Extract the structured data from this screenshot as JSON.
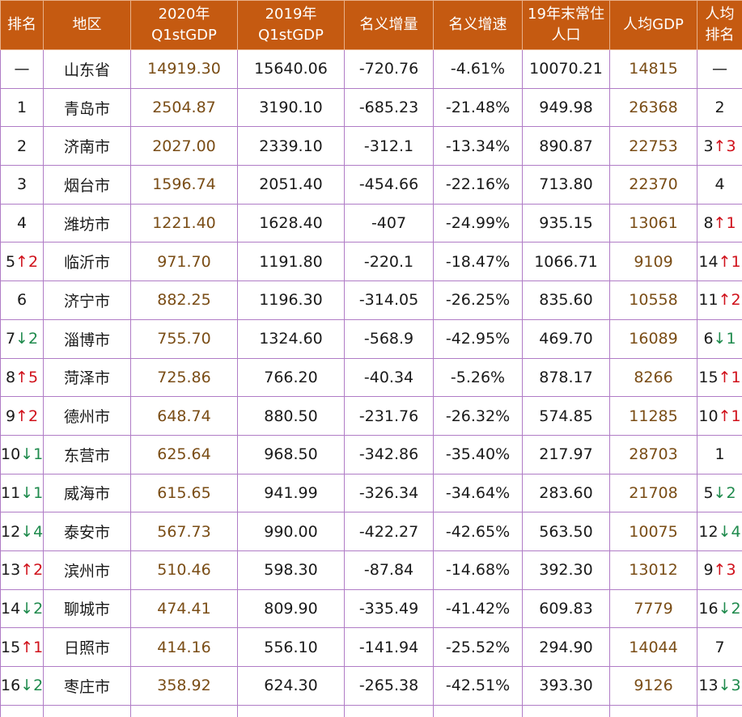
{
  "headers": [
    [
      "排名"
    ],
    [
      "地区"
    ],
    [
      "2020年",
      "Q1stGDP"
    ],
    [
      "2019年",
      "Q1stGDP"
    ],
    [
      "名义增量"
    ],
    [
      "名义增速"
    ],
    [
      "19年末常住",
      "人口"
    ],
    [
      "人均GDP"
    ],
    [
      "人均",
      "排名"
    ]
  ],
  "rows": [
    {
      "rank": "—",
      "rank_arrow": "",
      "rank_change": "",
      "region": "山东省",
      "gdp2020": "14919.30",
      "gdp2019": "15640.06",
      "increase": "-720.76",
      "growth": "-4.61%",
      "population": "10070.21",
      "per_capita": "14815",
      "pc_rank": "—",
      "pc_arrow": "",
      "pc_change": ""
    },
    {
      "rank": "1",
      "rank_arrow": "",
      "rank_change": "",
      "region": "青岛市",
      "gdp2020": "2504.87",
      "gdp2019": "3190.10",
      "increase": "-685.23",
      "growth": "-21.48%",
      "population": "949.98",
      "per_capita": "26368",
      "pc_rank": "2",
      "pc_arrow": "",
      "pc_change": ""
    },
    {
      "rank": "2",
      "rank_arrow": "",
      "rank_change": "",
      "region": "济南市",
      "gdp2020": "2027.00",
      "gdp2019": "2339.10",
      "increase": "-312.1",
      "growth": "-13.34%",
      "population": "890.87",
      "per_capita": "22753",
      "pc_rank": "3",
      "pc_arrow": "↑",
      "pc_change": "3"
    },
    {
      "rank": "3",
      "rank_arrow": "",
      "rank_change": "",
      "region": "烟台市",
      "gdp2020": "1596.74",
      "gdp2019": "2051.40",
      "increase": "-454.66",
      "growth": "-22.16%",
      "population": "713.80",
      "per_capita": "22370",
      "pc_rank": "4",
      "pc_arrow": "",
      "pc_change": ""
    },
    {
      "rank": "4",
      "rank_arrow": "",
      "rank_change": "",
      "region": "潍坊市",
      "gdp2020": "1221.40",
      "gdp2019": "1628.40",
      "increase": "-407",
      "growth": "-24.99%",
      "population": "935.15",
      "per_capita": "13061",
      "pc_rank": "8",
      "pc_arrow": "↑",
      "pc_change": "1"
    },
    {
      "rank": "5",
      "rank_arrow": "↑",
      "rank_change": "2",
      "region": "临沂市",
      "gdp2020": "971.70",
      "gdp2019": "1191.80",
      "increase": "-220.1",
      "growth": "-18.47%",
      "population": "1066.71",
      "per_capita": "9109",
      "pc_rank": "14",
      "pc_arrow": "↑",
      "pc_change": "1"
    },
    {
      "rank": "6",
      "rank_arrow": "",
      "rank_change": "",
      "region": "济宁市",
      "gdp2020": "882.25",
      "gdp2019": "1196.30",
      "increase": "-314.05",
      "growth": "-26.25%",
      "population": "835.60",
      "per_capita": "10558",
      "pc_rank": "11",
      "pc_arrow": "↑",
      "pc_change": "2"
    },
    {
      "rank": "7",
      "rank_arrow": "↓",
      "rank_change": "2",
      "region": "淄博市",
      "gdp2020": "755.70",
      "gdp2019": "1324.60",
      "increase": "-568.9",
      "growth": "-42.95%",
      "population": "469.70",
      "per_capita": "16089",
      "pc_rank": "6",
      "pc_arrow": "↓",
      "pc_change": "1"
    },
    {
      "rank": "8",
      "rank_arrow": "↑",
      "rank_change": "5",
      "region": "菏泽市",
      "gdp2020": "725.86",
      "gdp2019": "766.20",
      "increase": "-40.34",
      "growth": "-5.26%",
      "population": "878.17",
      "per_capita": "8266",
      "pc_rank": "15",
      "pc_arrow": "↑",
      "pc_change": "1"
    },
    {
      "rank": "9",
      "rank_arrow": "↑",
      "rank_change": "2",
      "region": "德州市",
      "gdp2020": "648.74",
      "gdp2019": "880.50",
      "increase": "-231.76",
      "growth": "-26.32%",
      "population": "574.85",
      "per_capita": "11285",
      "pc_rank": "10",
      "pc_arrow": "↑",
      "pc_change": "1"
    },
    {
      "rank": "10",
      "rank_arrow": "↓",
      "rank_change": "1",
      "region": "东营市",
      "gdp2020": "625.64",
      "gdp2019": "968.50",
      "increase": "-342.86",
      "growth": "-35.40%",
      "population": "217.97",
      "per_capita": "28703",
      "pc_rank": "1",
      "pc_arrow": "",
      "pc_change": ""
    },
    {
      "rank": "11",
      "rank_arrow": "↓",
      "rank_change": "1",
      "region": "威海市",
      "gdp2020": "615.65",
      "gdp2019": "941.99",
      "increase": "-326.34",
      "growth": "-34.64%",
      "population": "283.60",
      "per_capita": "21708",
      "pc_rank": "5",
      "pc_arrow": "↓",
      "pc_change": "2"
    },
    {
      "rank": "12",
      "rank_arrow": "↓",
      "rank_change": "4",
      "region": "泰安市",
      "gdp2020": "567.73",
      "gdp2019": "990.00",
      "increase": "-422.27",
      "growth": "-42.65%",
      "population": "563.50",
      "per_capita": "10075",
      "pc_rank": "12",
      "pc_arrow": "↓",
      "pc_change": "4"
    },
    {
      "rank": "13",
      "rank_arrow": "↑",
      "rank_change": "2",
      "region": "滨州市",
      "gdp2020": "510.46",
      "gdp2019": "598.30",
      "increase": "-87.84",
      "growth": "-14.68%",
      "population": "392.30",
      "per_capita": "13012",
      "pc_rank": "9",
      "pc_arrow": "↑",
      "pc_change": "3"
    },
    {
      "rank": "14",
      "rank_arrow": "↓",
      "rank_change": "2",
      "region": "聊城市",
      "gdp2020": "474.41",
      "gdp2019": "809.90",
      "increase": "-335.49",
      "growth": "-41.42%",
      "population": "609.83",
      "per_capita": "7779",
      "pc_rank": "16",
      "pc_arrow": "↓",
      "pc_change": "2"
    },
    {
      "rank": "15",
      "rank_arrow": "↑",
      "rank_change": "1",
      "region": "日照市",
      "gdp2020": "414.16",
      "gdp2019": "556.10",
      "increase": "-141.94",
      "growth": "-25.52%",
      "population": "294.90",
      "per_capita": "14044",
      "pc_rank": "7",
      "pc_arrow": "",
      "pc_change": ""
    },
    {
      "rank": "16",
      "rank_arrow": "↓",
      "rank_change": "2",
      "region": "枣庄市",
      "gdp2020": "358.92",
      "gdp2019": "624.30",
      "increase": "-265.38",
      "growth": "-42.51%",
      "population": "393.30",
      "per_capita": "9126",
      "pc_rank": "13",
      "pc_arrow": "↓",
      "pc_change": "3"
    }
  ],
  "colors": {
    "header_bg": "#c55a11",
    "header_text": "#ffffff",
    "grid_line": "#b07cc6",
    "gdp_text": "#7a4d16",
    "arrow_up": "#d0101a",
    "arrow_down": "#1e8a4c"
  }
}
